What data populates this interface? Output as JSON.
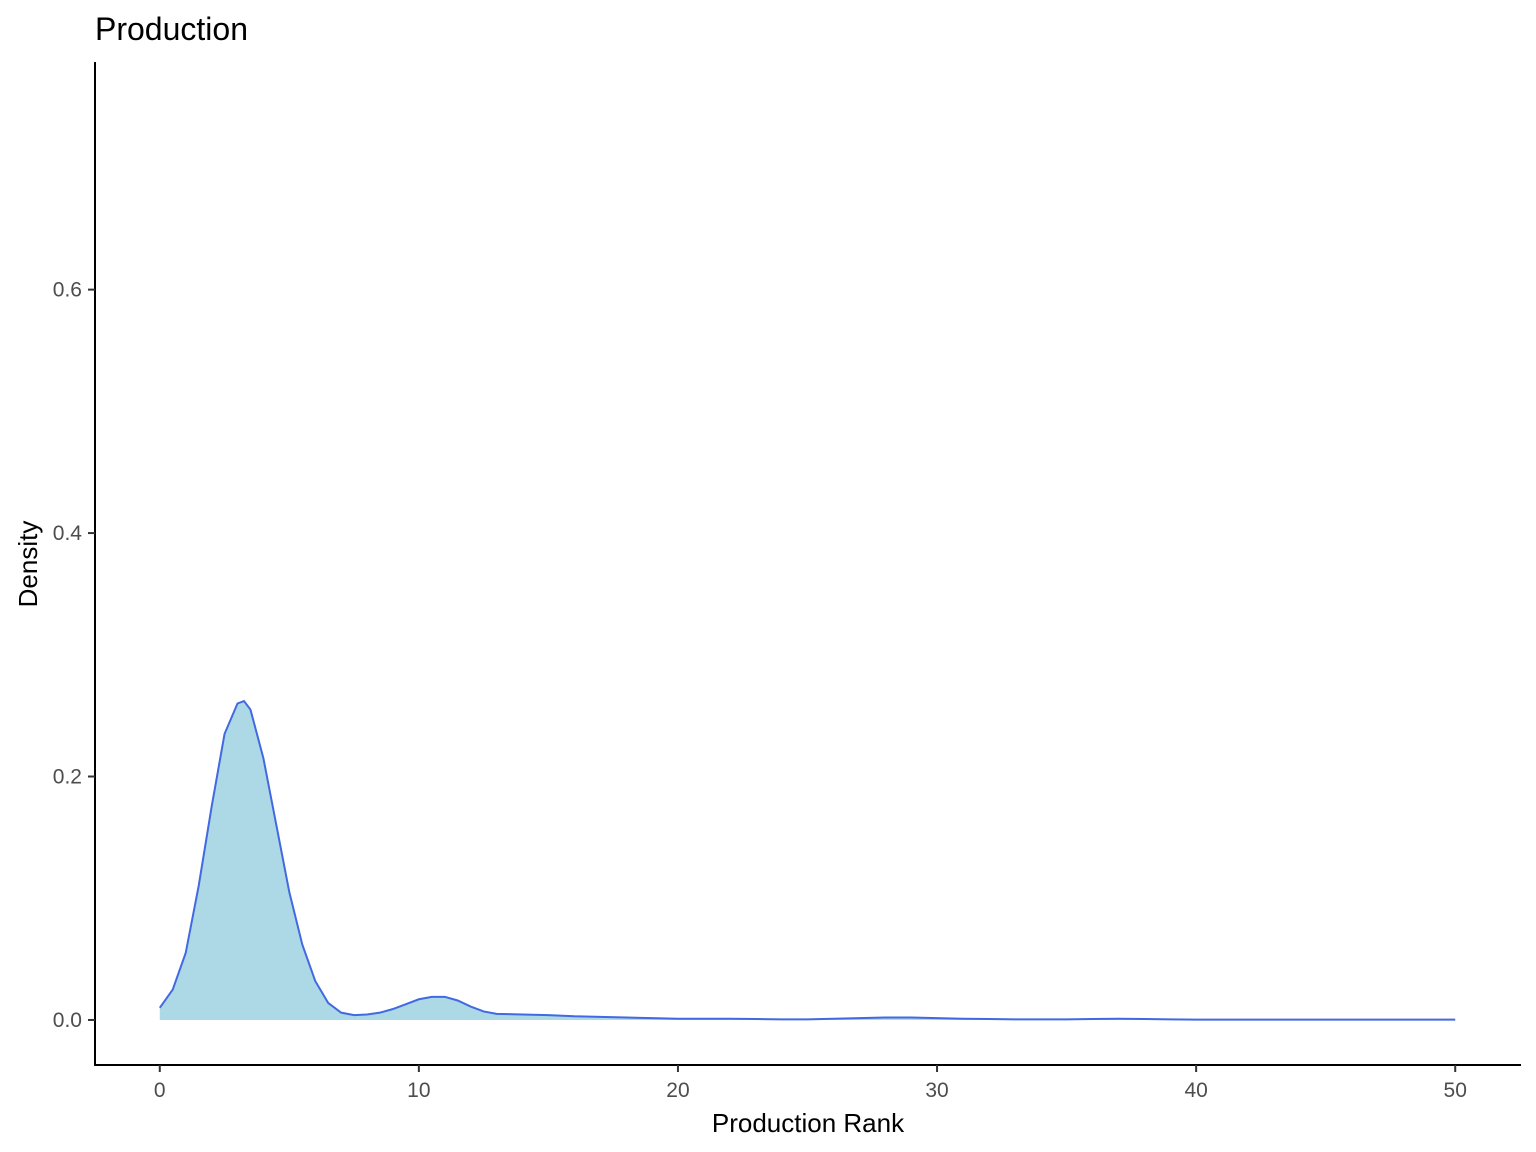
{
  "chart_data": {
    "type": "area",
    "title": "Production",
    "xlabel": "Production Rank",
    "ylabel": "Density",
    "xlim": [
      -2.5,
      52.5
    ],
    "ylim": [
      -0.037,
      0.787
    ],
    "xticks": [
      0,
      10,
      20,
      30,
      40,
      50
    ],
    "xtick_labels": [
      "0",
      "10",
      "20",
      "30",
      "40",
      "50"
    ],
    "yticks": [
      0.0,
      0.2,
      0.4,
      0.6
    ],
    "ytick_labels": [
      "0.0",
      "0.2",
      "0.4",
      "0.6"
    ],
    "grid": false,
    "legend": "none",
    "fill_color": "#add8e6",
    "line_color": "#4169e1",
    "series": [
      {
        "x": [
          0,
          0.5,
          1,
          1.5,
          2,
          2.5,
          3,
          3.25,
          3.5,
          4,
          4.5,
          5,
          5.5,
          6,
          6.5,
          7,
          7.5,
          8,
          8.5,
          9,
          9.5,
          10,
          10.5,
          11,
          11.5,
          12,
          12.5,
          13,
          14,
          15,
          16,
          17,
          18,
          19,
          20,
          21,
          22,
          23,
          24,
          25,
          26,
          27,
          28,
          29,
          30,
          31,
          32,
          33,
          34,
          35,
          36,
          37,
          38,
          39,
          40,
          41,
          42,
          43,
          44,
          45,
          46,
          47,
          48,
          49,
          50
        ],
        "y": [
          0.01,
          0.025,
          0.055,
          0.11,
          0.175,
          0.235,
          0.26,
          0.262,
          0.255,
          0.215,
          0.16,
          0.105,
          0.062,
          0.032,
          0.014,
          0.006,
          0.004,
          0.0045,
          0.006,
          0.009,
          0.013,
          0.017,
          0.019,
          0.019,
          0.016,
          0.011,
          0.007,
          0.005,
          0.0045,
          0.004,
          0.003,
          0.0025,
          0.002,
          0.0015,
          0.001,
          0.001,
          0.001,
          0.0008,
          0.0005,
          0.0005,
          0.001,
          0.0015,
          0.002,
          0.002,
          0.0015,
          0.001,
          0.0008,
          0.0005,
          0.0005,
          0.0005,
          0.0008,
          0.001,
          0.0008,
          0.0005,
          0.0003,
          0.0003,
          0.0003,
          0.0003,
          0.0003,
          0.0003,
          0.0003,
          0.0003,
          0.0003,
          0.0003,
          0.0003
        ]
      }
    ]
  }
}
